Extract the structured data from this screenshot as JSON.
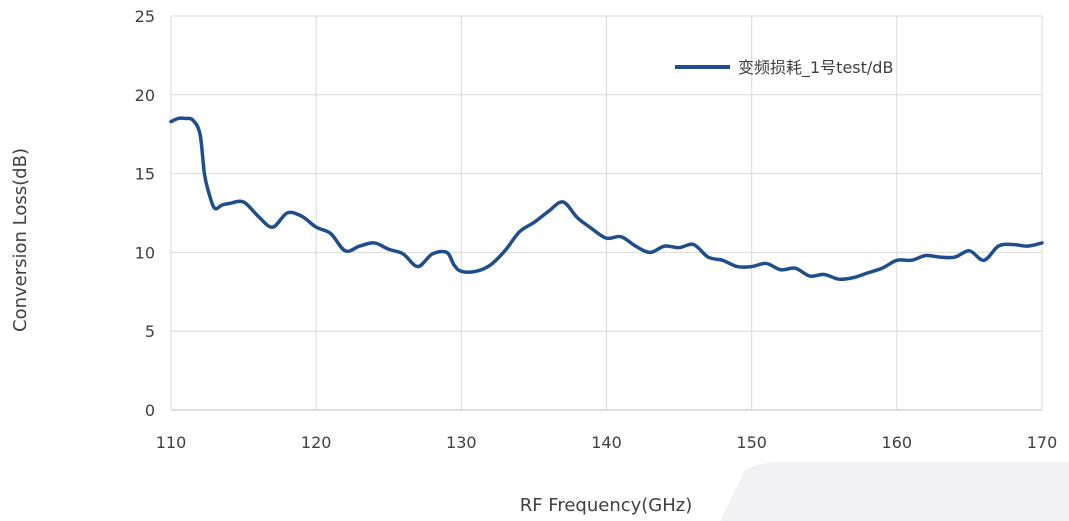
{
  "chart_data": {
    "type": "line",
    "title": "",
    "xlabel": "RF Frequency(GHz)",
    "ylabel": "Conversion Loss(dB)",
    "xlim": [
      110,
      170
    ],
    "ylim": [
      0,
      25
    ],
    "xticks": [
      110,
      120,
      130,
      140,
      150,
      160,
      170
    ],
    "yticks": [
      0,
      5,
      10,
      15,
      20,
      25
    ],
    "grid": true,
    "legend_position": "top-right",
    "series": [
      {
        "name": "变频损耗_1号test/dB",
        "color": "#1F4E8C",
        "x": [
          110,
          110.5,
          111,
          111.5,
          112,
          112.3,
          112.6,
          113,
          113.5,
          114,
          115,
          116,
          117,
          118,
          119,
          120,
          121,
          122,
          123,
          124,
          125,
          126,
          127,
          128,
          129,
          129.5,
          130,
          131,
          132,
          133,
          134,
          135,
          136,
          137,
          138,
          139,
          140,
          141,
          142,
          143,
          144,
          145,
          146,
          147,
          148,
          149,
          150,
          151,
          152,
          153,
          154,
          155,
          156,
          157,
          158,
          159,
          160,
          161,
          162,
          163,
          164,
          165,
          166,
          167,
          168,
          169,
          170
        ],
        "values": [
          18.3,
          18.5,
          18.5,
          18.4,
          17.5,
          15.0,
          13.8,
          12.8,
          13.0,
          13.1,
          13.2,
          12.3,
          11.6,
          12.5,
          12.3,
          11.6,
          11.2,
          10.1,
          10.4,
          10.6,
          10.2,
          9.9,
          9.1,
          9.9,
          10.0,
          9.2,
          8.8,
          8.8,
          9.2,
          10.1,
          11.3,
          11.9,
          12.6,
          13.2,
          12.2,
          11.5,
          10.9,
          11.0,
          10.4,
          10.0,
          10.4,
          10.3,
          10.5,
          9.7,
          9.5,
          9.1,
          9.1,
          9.3,
          8.9,
          9.0,
          8.5,
          8.6,
          8.3,
          8.4,
          8.7,
          9.0,
          9.5,
          9.5,
          9.8,
          9.7,
          9.7,
          10.1,
          9.5,
          10.4,
          10.5,
          10.4,
          10.6
        ]
      }
    ]
  }
}
